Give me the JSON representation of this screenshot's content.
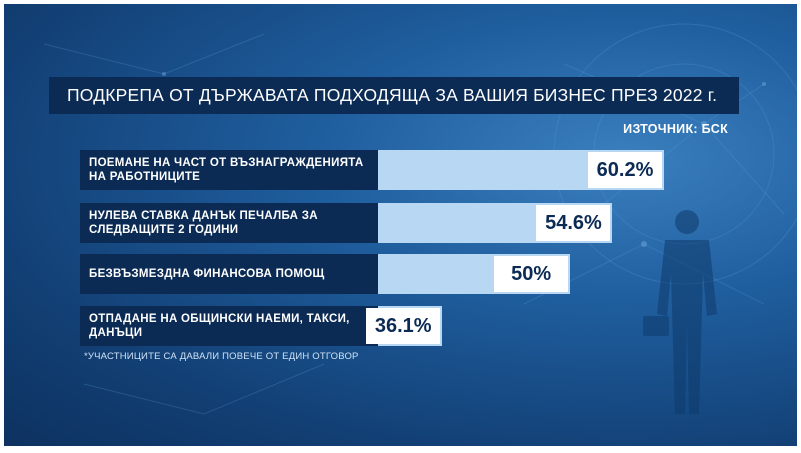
{
  "chart_data": {
    "type": "bar",
    "orientation": "horizontal",
    "title": "ПОДКРЕПА ОТ ДЪРЖАВАТА ПОДХОДЯЩА ЗА ВАШИЯ БИЗНЕС ПРЕЗ 2022 г.",
    "source": "ИЗТОЧНИК: БСК",
    "footnote": "*УЧАСТНИЦИТЕ СА ДАВАЛИ ПОВЕЧЕ ОТ ЕДИН ОТГОВОР",
    "categories": [
      "ПОЕМАНЕ НА ЧАСТ ОТ ВЪЗНАГРАЖДЕНИЯТА НА РАБОТНИЦИТЕ",
      "НУЛЕВА СТАВКА ДАНЪК ПЕЧАЛБА ЗА СЛЕДВАЩИТЕ 2 ГОДИНИ",
      "БЕЗВЪЗМЕЗДНА ФИНАНСОВА ПОМОЩ",
      "ОТПАДАНЕ НА ОБЩИНСКИ НАЕМИ, ТАКСИ, ДАНЪЦИ"
    ],
    "values": [
      60.2,
      54.6,
      50,
      36.1
    ],
    "value_labels": [
      "60.2%",
      "54.6%",
      "50%",
      "36.1%"
    ],
    "unit": "%",
    "xlim": [
      0,
      60.2
    ],
    "grid": false,
    "legend": "none",
    "colors": {
      "label_bg": "#0b2b55",
      "bar": "#b7d7f2",
      "value_box": "#ffffff",
      "value_text": "#0b2b55",
      "background": "#1f5e9e"
    }
  }
}
